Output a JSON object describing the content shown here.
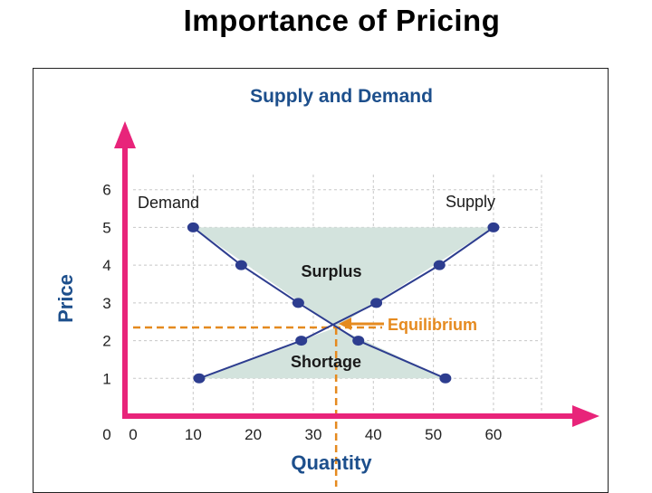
{
  "slide": {
    "title": "Importance of Pricing"
  },
  "colors": {
    "axis": "#e8247a",
    "curve": "#2d3d8f",
    "region": "#d3e3dd",
    "equilibrium": "#e58a1f",
    "grid": "#c8c8c8"
  },
  "chart_data": {
    "type": "line",
    "title": "Supply and Demand",
    "xlabel": "Quantity",
    "ylabel": "Price",
    "xlim": [
      0,
      68
    ],
    "ylim": [
      0,
      6.4
    ],
    "xticks": [
      "0",
      "10",
      "20",
      "30",
      "40",
      "50",
      "60"
    ],
    "yticks": [
      "1",
      "2",
      "3",
      "4",
      "5",
      "6"
    ],
    "grid": true,
    "series": [
      {
        "name": "Demand",
        "points": [
          [
            10,
            5
          ],
          [
            18,
            4
          ],
          [
            27.5,
            3
          ],
          [
            37.5,
            2
          ],
          [
            52,
            1
          ]
        ]
      },
      {
        "name": "Supply",
        "points": [
          [
            11,
            1
          ],
          [
            28,
            2
          ],
          [
            40.5,
            3
          ],
          [
            51,
            4
          ],
          [
            60,
            5
          ]
        ]
      }
    ],
    "equilibrium": {
      "label": "Equilibrium",
      "x": 33.8,
      "y": 2.35
    },
    "regions": [
      {
        "label": "Surplus"
      },
      {
        "label": "Shortage"
      }
    ]
  }
}
